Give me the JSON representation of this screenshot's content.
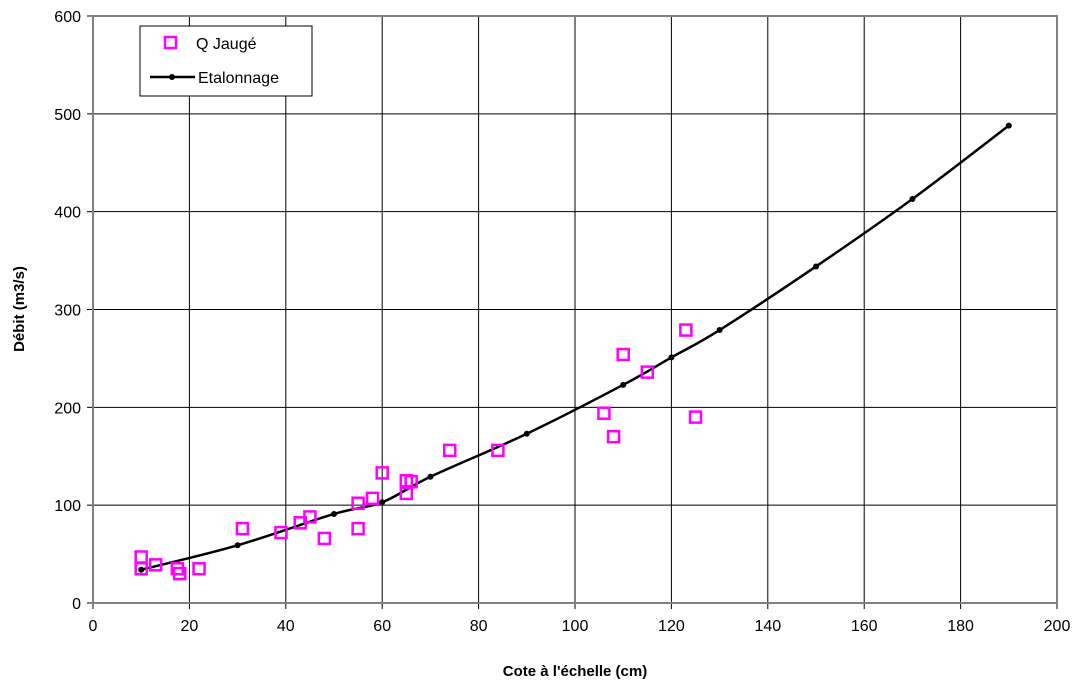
{
  "chart_data": {
    "type": "scatter",
    "title": "",
    "xlabel": "Cote à l'échelle (cm)",
    "ylabel": "Débit (m3/s)",
    "xlim": [
      0,
      200
    ],
    "ylim": [
      0,
      600
    ],
    "xticks": [
      0,
      20,
      40,
      60,
      80,
      100,
      120,
      140,
      160,
      180,
      200
    ],
    "yticks": [
      0,
      100,
      200,
      300,
      400,
      500,
      600
    ],
    "grid": true,
    "legend_position": "top-left",
    "series": [
      {
        "name": "Q Jaugé",
        "kind": "markers",
        "marker": "open-square",
        "color": "#ff00ff",
        "points": [
          [
            10,
            47
          ],
          [
            10,
            35
          ],
          [
            13,
            39
          ],
          [
            17.5,
            35
          ],
          [
            18,
            30
          ],
          [
            22,
            35
          ],
          [
            31,
            76
          ],
          [
            39,
            72
          ],
          [
            43,
            82
          ],
          [
            45,
            88
          ],
          [
            48,
            66
          ],
          [
            55,
            102
          ],
          [
            55,
            76
          ],
          [
            58,
            107
          ],
          [
            60,
            133
          ],
          [
            65,
            125
          ],
          [
            65,
            112
          ],
          [
            66,
            124
          ],
          [
            74,
            156
          ],
          [
            84,
            156
          ],
          [
            106,
            194
          ],
          [
            108,
            170
          ],
          [
            110,
            254
          ],
          [
            115,
            236
          ],
          [
            123,
            279
          ],
          [
            125,
            190
          ]
        ]
      },
      {
        "name": "Etalonnage",
        "kind": "line",
        "marker": "dot",
        "color": "#000000",
        "points": [
          [
            10,
            34
          ],
          [
            30,
            59
          ],
          [
            50,
            91
          ],
          [
            60,
            103
          ],
          [
            70,
            129
          ],
          [
            90,
            173
          ],
          [
            110,
            223
          ],
          [
            120,
            251
          ],
          [
            130,
            279
          ],
          [
            150,
            344
          ],
          [
            170,
            413
          ],
          [
            190,
            488
          ]
        ]
      }
    ]
  }
}
